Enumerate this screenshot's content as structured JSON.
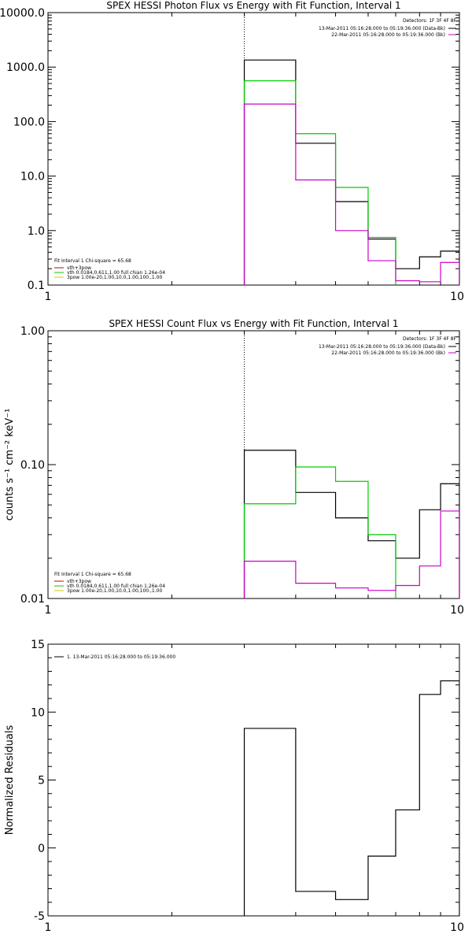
{
  "chart_data": [
    {
      "type": "line",
      "title": "SPEX HESSI Photon Flux vs Energy with Fit Function, Interval 1",
      "xlabel": "",
      "ylabel": "",
      "xscale": "log",
      "yscale": "log",
      "xlim": [
        1,
        10
      ],
      "ylim": [
        0.1,
        10000
      ],
      "x_ticks": [
        "1",
        "10"
      ],
      "y_ticks": [
        "0.1",
        "1.0",
        "10.0",
        "100.0",
        "1000.0",
        "10000.0"
      ],
      "grid": false,
      "vline_x": 3,
      "legend_top_right": {
        "header": "Detectors: 1F 3F 4F 8F",
        "entries": [
          {
            "text": "13-Mar-2011 05:16:28.000 to 05:19:36.000 (Data-Bk)",
            "color": "#000000"
          },
          {
            "text": "22-Mar-2011 05:16:28.000 to 05:19:36.000 (Bk)",
            "color": "#cc00cc"
          }
        ]
      },
      "legend_bottom_left": {
        "header": "Fit Interval 1    Chi-square = 65.68",
        "entries": [
          {
            "text": "vth+3pow",
            "color": "#cc0000"
          },
          {
            "text": "vth 0.0184,0.611,1.00  full chian 1.26e-04",
            "color": "#00cc00"
          },
          {
            "text": "3pow 1.00e-20,1.00,10.0,1.00,100.,1.00",
            "color": "#cccc00"
          }
        ]
      },
      "series": [
        {
          "color": "#000000",
          "edges": [
            3,
            4,
            5,
            6,
            7,
            8,
            9,
            10
          ],
          "values": [
            1350,
            40,
            3.4,
            0.7,
            0.2,
            0.33,
            0.42
          ]
        },
        {
          "color": "#00cc00",
          "edges": [
            3,
            4,
            5,
            6,
            7
          ],
          "values": [
            560,
            60,
            6.2,
            0.75
          ]
        },
        {
          "color": "#cc00cc",
          "edges": [
            3,
            4,
            5,
            6,
            7,
            8,
            9,
            10
          ],
          "values": [
            210,
            8.5,
            1.0,
            0.28,
            0.12,
            0.115,
            0.26
          ]
        }
      ]
    },
    {
      "type": "line",
      "title": "SPEX HESSI Count Flux vs Energy with Fit Function, Interval 1",
      "xlabel": "",
      "ylabel": "counts s⁻¹ cm⁻² keV⁻¹",
      "xscale": "log",
      "yscale": "log",
      "xlim": [
        1,
        10
      ],
      "ylim": [
        0.01,
        1.0
      ],
      "x_ticks": [
        "1",
        "10"
      ],
      "y_ticks": [
        "0.01",
        "0.10",
        "1.00"
      ],
      "grid": false,
      "vline_x": 3,
      "legend_top_right": {
        "header": "Detectors: 1F 3F 4F 8F",
        "entries": [
          {
            "text": "13-Mar-2011 05:16:28.000 to 05:19:36.000 (Data-Bk)",
            "color": "#000000"
          },
          {
            "text": "22-Mar-2011 05:16:28.000 to 05:19:36.000 (Bk)",
            "color": "#cc00cc"
          }
        ]
      },
      "legend_bottom_left": {
        "header": "Fit Interval 1    Chi-square = 65.68",
        "entries": [
          {
            "text": "vth+3pow",
            "color": "#cc0000"
          },
          {
            "text": "vth 0.0184,0.611,1.00  full chian 1.26e-04",
            "color": "#00cc00"
          },
          {
            "text": "3pow 1.00e-20,1.00,10.0,1.00,100.,1.00",
            "color": "#cccc00"
          }
        ]
      },
      "series": [
        {
          "color": "#000000",
          "edges": [
            3,
            4,
            5,
            6,
            7,
            8,
            9,
            10
          ],
          "values": [
            0.128,
            0.062,
            0.04,
            0.027,
            0.02,
            0.046,
            0.072
          ]
        },
        {
          "color": "#00cc00",
          "edges": [
            3,
            4,
            5,
            6,
            7
          ],
          "values": [
            0.051,
            0.096,
            0.075,
            0.03
          ]
        },
        {
          "color": "#cc00cc",
          "edges": [
            3,
            4,
            5,
            6,
            7,
            8,
            9,
            10
          ],
          "values": [
            0.019,
            0.013,
            0.012,
            0.0115,
            0.0125,
            0.0175,
            0.045
          ]
        }
      ]
    },
    {
      "type": "line",
      "title": "",
      "xlabel": "",
      "ylabel": "Normalized Residuals",
      "xscale": "log",
      "yscale": "linear",
      "xlim": [
        1,
        10
      ],
      "ylim": [
        -5,
        15
      ],
      "x_ticks": [
        "1",
        "10"
      ],
      "y_ticks": [
        "-5",
        "0",
        "5",
        "10",
        "15"
      ],
      "grid": false,
      "legend_top_left": {
        "entries": [
          {
            "text": "1. 13-Mar-2011 05:16:28.000 to 05:19:36.000",
            "color": "#000000"
          }
        ]
      },
      "series": [
        {
          "color": "#000000",
          "edges": [
            3,
            4,
            5,
            6,
            7,
            8,
            9,
            10
          ],
          "values": [
            8.8,
            -3.2,
            -3.8,
            -0.6,
            2.8,
            11.3,
            12.3
          ]
        }
      ]
    }
  ]
}
